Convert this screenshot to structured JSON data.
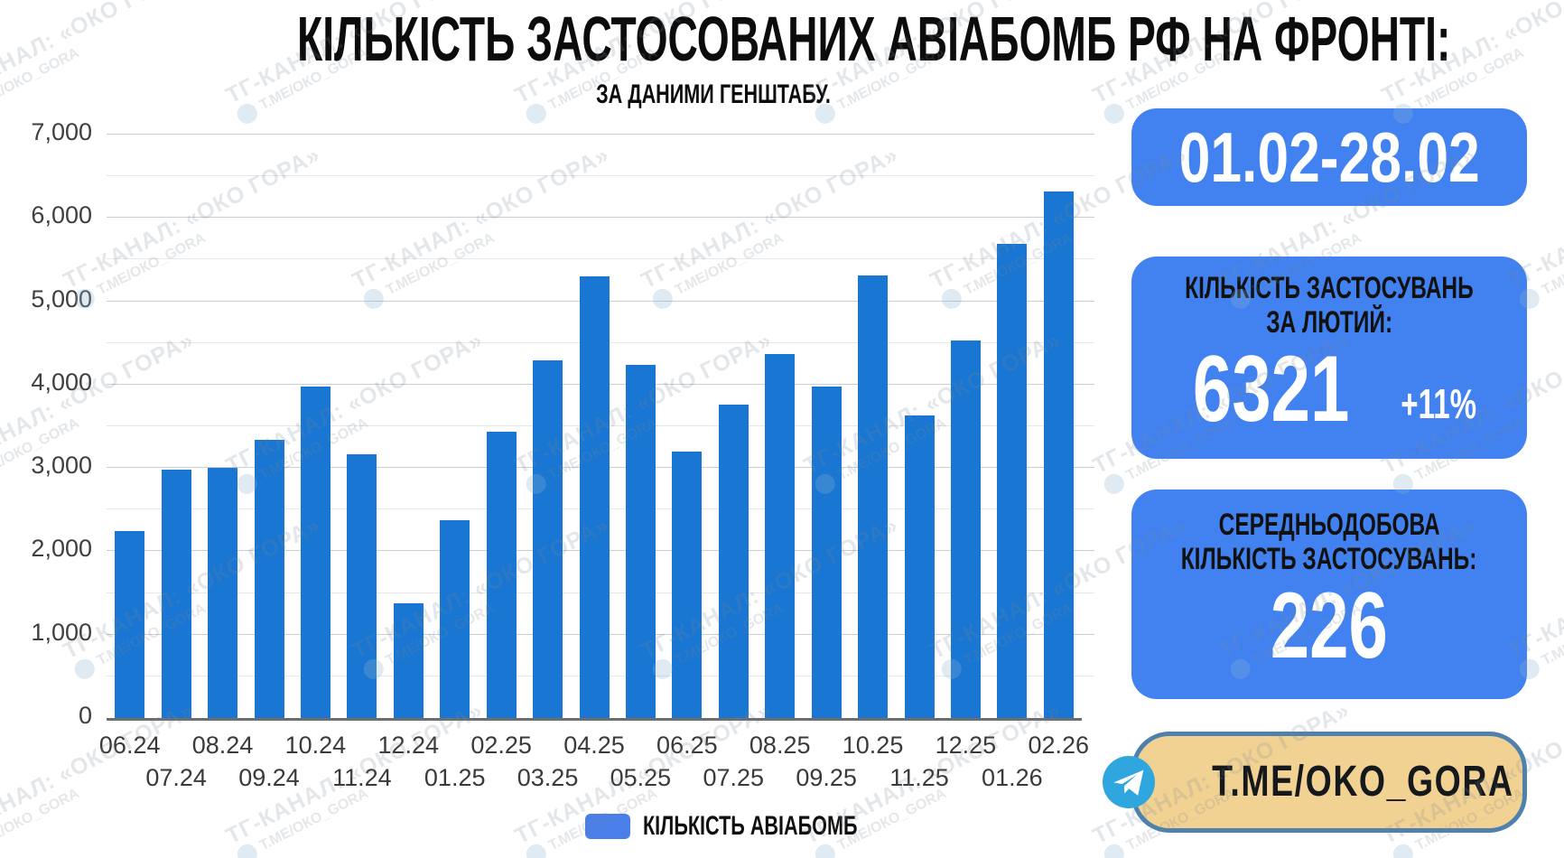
{
  "title": "КІЛЬКІСТЬ ЗАСТОСОВАНИХ АВІАБОМБ РФ НА ФРОНТІ:",
  "subtitle": "ЗА ДАНИМИ ГЕНШТАБУ.",
  "chart_data": {
    "type": "bar",
    "categories": [
      "06.24",
      "07.24",
      "08.24",
      "09.24",
      "10.24",
      "11.24",
      "12.24",
      "01.25",
      "02.25",
      "03.25",
      "04.25",
      "05.25",
      "06.25",
      "07.25",
      "08.25",
      "09.25",
      "10.25",
      "11.25",
      "12.25",
      "01.26",
      "02.26"
    ],
    "values": [
      2240,
      2980,
      3000,
      3340,
      3980,
      3160,
      1380,
      2370,
      3430,
      4290,
      5300,
      4240,
      3200,
      3760,
      4370,
      3980,
      5310,
      3630,
      4530,
      5690,
      6321
    ],
    "title": "КІЛЬКІСТЬ ЗАСТОСОВАНИХ АВІАБОМБ РФ НА ФРОНТІ:",
    "xlabel": "",
    "ylabel": "",
    "ylim": [
      0,
      7000
    ],
    "ytick_step_major": 1000,
    "ytick_step_minor": 500,
    "ytick_labels": [
      "0",
      "1,000",
      "2,000",
      "3,000",
      "4,000",
      "5,000",
      "6,000",
      "7,000"
    ],
    "grid": true,
    "legend": [
      "КІЛЬКІСТЬ АВІАБОМБ"
    ],
    "legend_position": "bottom"
  },
  "side_panels": {
    "date_range": "01.02-28.02",
    "usage": {
      "label_line1": "КІЛЬКІСТЬ ЗАСТОСУВАНЬ",
      "label_line2": "ЗА ЛЮТИЙ:",
      "value": "6321",
      "delta": "+11%"
    },
    "daily": {
      "label_line1": "СЕРЕДНЬОДОБОВА",
      "label_line2": "КІЛЬКІСТЬ ЗАСТОСУВАНЬ:",
      "value": "226"
    }
  },
  "telegram": {
    "handle": "T.ME/OKO_GORA"
  },
  "watermark": {
    "line1": "ТГ-КАНАЛ: «ОКО ГОРА»",
    "line2": "Т.МЕ/ОКО_GORA"
  },
  "colors": {
    "bar": "#1976d2",
    "badge_blue": "#4282f0",
    "legend_swatch": "#4a7fe9",
    "grid_major": "#c9ced4",
    "grid_minor": "#e4e8ec",
    "telegram_bg": "#f2d292",
    "telegram_border": "#4e81ab",
    "telegram_icon": "#2fa6dd"
  }
}
